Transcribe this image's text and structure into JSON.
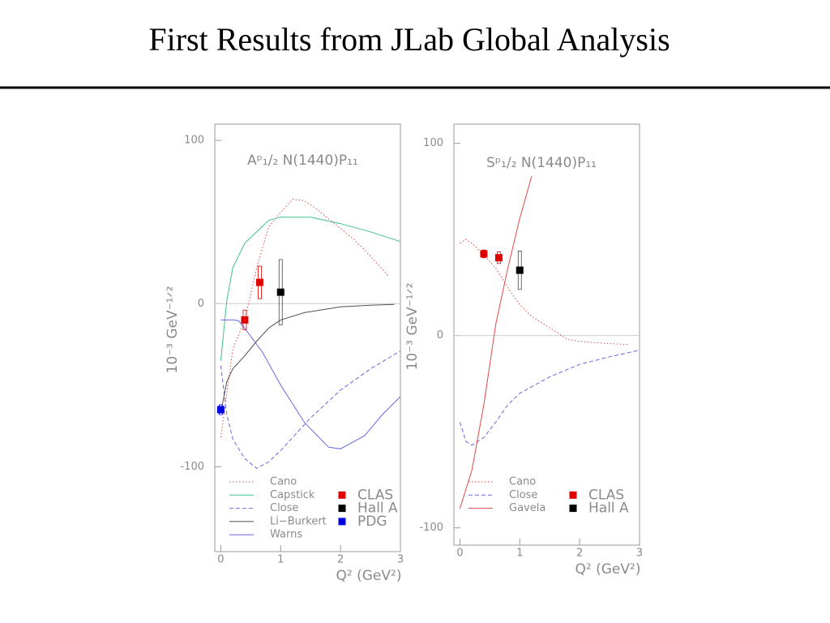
{
  "slide": {
    "title": "First Results from JLab Global Analysis"
  },
  "chart_data": [
    {
      "type": "line",
      "annotation": "Aᵖ₁/₂  N(1440)P₁₁",
      "x_label": "Q² (GeV²)",
      "y_label": "10⁻³ GeV⁻¹ᐟ²",
      "xlim": [
        -0.1,
        3
      ],
      "xticks": [
        0,
        1,
        2,
        3
      ],
      "ylim": [
        -152,
        110
      ],
      "yticks": [
        -100,
        0,
        100
      ],
      "series": [
        {
          "name": "Cano",
          "color": "#e04848",
          "dash": "dotted",
          "x": [
            0,
            0.2,
            0.4,
            0.6,
            0.8,
            1.0,
            1.2,
            1.4,
            1.6,
            1.8,
            2.0,
            2.2,
            2.4,
            2.6,
            2.8
          ],
          "values": [
            -82,
            -28,
            -10,
            22,
            47,
            56,
            64,
            63,
            58,
            52,
            46,
            40,
            33,
            25,
            17
          ]
        },
        {
          "name": "Capstick",
          "color": "#40c088",
          "dash": "solid",
          "x": [
            0,
            0.1,
            0.2,
            0.4,
            0.6,
            0.8,
            1.0,
            1.5,
            2.0,
            2.5,
            3.0
          ],
          "values": [
            -35,
            2,
            22,
            37,
            44,
            51,
            53,
            53,
            49,
            44,
            38
          ]
        },
        {
          "name": "Close",
          "color": "#6868e0",
          "dash": "dashed",
          "x": [
            0,
            0.1,
            0.2,
            0.4,
            0.6,
            0.8,
            1.0,
            1.5,
            2.0,
            2.5,
            3.0
          ],
          "values": [
            -38,
            -68,
            -83,
            -95,
            -101,
            -97,
            -90,
            -70,
            -53,
            -40,
            -29
          ]
        },
        {
          "name": "Li−Burkert",
          "color": "#505050",
          "dash": "solid",
          "x": [
            0.02,
            0.1,
            0.2,
            0.4,
            0.6,
            0.8,
            1.0,
            1.4,
            2.0,
            2.5,
            2.9
          ],
          "values": [
            -63,
            -48,
            -40,
            -32,
            -23,
            -15,
            -10,
            -5.5,
            -2,
            -1,
            -0.5
          ]
        },
        {
          "name": "Warns",
          "color": "#6868e0",
          "dash": "solid",
          "x": [
            0,
            0.2,
            0.3,
            0.5,
            0.7,
            1.0,
            1.4,
            1.8,
            2.0,
            2.4,
            2.7,
            3.0
          ],
          "values": [
            -10,
            -10,
            -10.5,
            -20,
            -30,
            -50,
            -73,
            -88,
            -89,
            -81,
            -68,
            -57
          ]
        }
      ],
      "points": [
        {
          "name": "CLAS",
          "color": "#e00000",
          "x": [
            0.4,
            0.65
          ],
          "y": [
            -10,
            13
          ],
          "err": [
            6,
            10
          ]
        },
        {
          "name": "Hall A",
          "color": "#000000",
          "x": [
            1.0
          ],
          "y": [
            7
          ],
          "err": [
            20
          ]
        },
        {
          "name": "PDG",
          "color": "#0000e0",
          "x": [
            0
          ],
          "y": [
            -65
          ],
          "err": [
            3
          ]
        }
      ]
    },
    {
      "type": "line",
      "annotation": "Sᵖ₁/₂  N(1440)P₁₁",
      "x_label": "Q² (GeV²)",
      "y_label": "10⁻³ GeV⁻¹ᐟ²",
      "xlim": [
        -0.1,
        3
      ],
      "xticks": [
        0,
        1,
        2,
        3
      ],
      "ylim": [
        -109,
        110
      ],
      "yticks": [
        -100,
        0,
        100
      ],
      "series": [
        {
          "name": "Cano",
          "color": "#e04848",
          "dash": "dotted",
          "x": [
            0,
            0.1,
            0.2,
            0.4,
            0.6,
            0.8,
            1.0,
            1.2,
            1.4,
            1.6,
            1.8,
            2.0,
            2.4,
            2.8
          ],
          "values": [
            48,
            50,
            48,
            42,
            35,
            25,
            16,
            10,
            6,
            2,
            -2,
            -3,
            -4,
            -4.6
          ]
        },
        {
          "name": "Close",
          "color": "#6868e0",
          "dash": "dashed",
          "x": [
            0,
            0.1,
            0.2,
            0.4,
            0.6,
            0.8,
            1.0,
            1.5,
            2.0,
            2.5,
            3.0
          ],
          "values": [
            -45,
            -55,
            -57,
            -53,
            -45,
            -36,
            -30,
            -21.5,
            -15,
            -11,
            -7.6
          ]
        },
        {
          "name": "Gavela",
          "color": "#e04848",
          "dash": "solid",
          "x": [
            0,
            0.2,
            0.4,
            0.6,
            0.8,
            1.0,
            1.2
          ],
          "values": [
            -90,
            -70,
            -36,
            6,
            35,
            61,
            83
          ]
        }
      ],
      "points": [
        {
          "name": "CLAS",
          "color": "#e00000",
          "x": [
            0.4,
            0.65
          ],
          "y": [
            42.5,
            40.5
          ],
          "err": [
            2,
            3
          ]
        },
        {
          "name": "Hall A",
          "color": "#000000",
          "x": [
            1.0
          ],
          "y": [
            34
          ],
          "err": [
            10
          ]
        }
      ]
    }
  ]
}
